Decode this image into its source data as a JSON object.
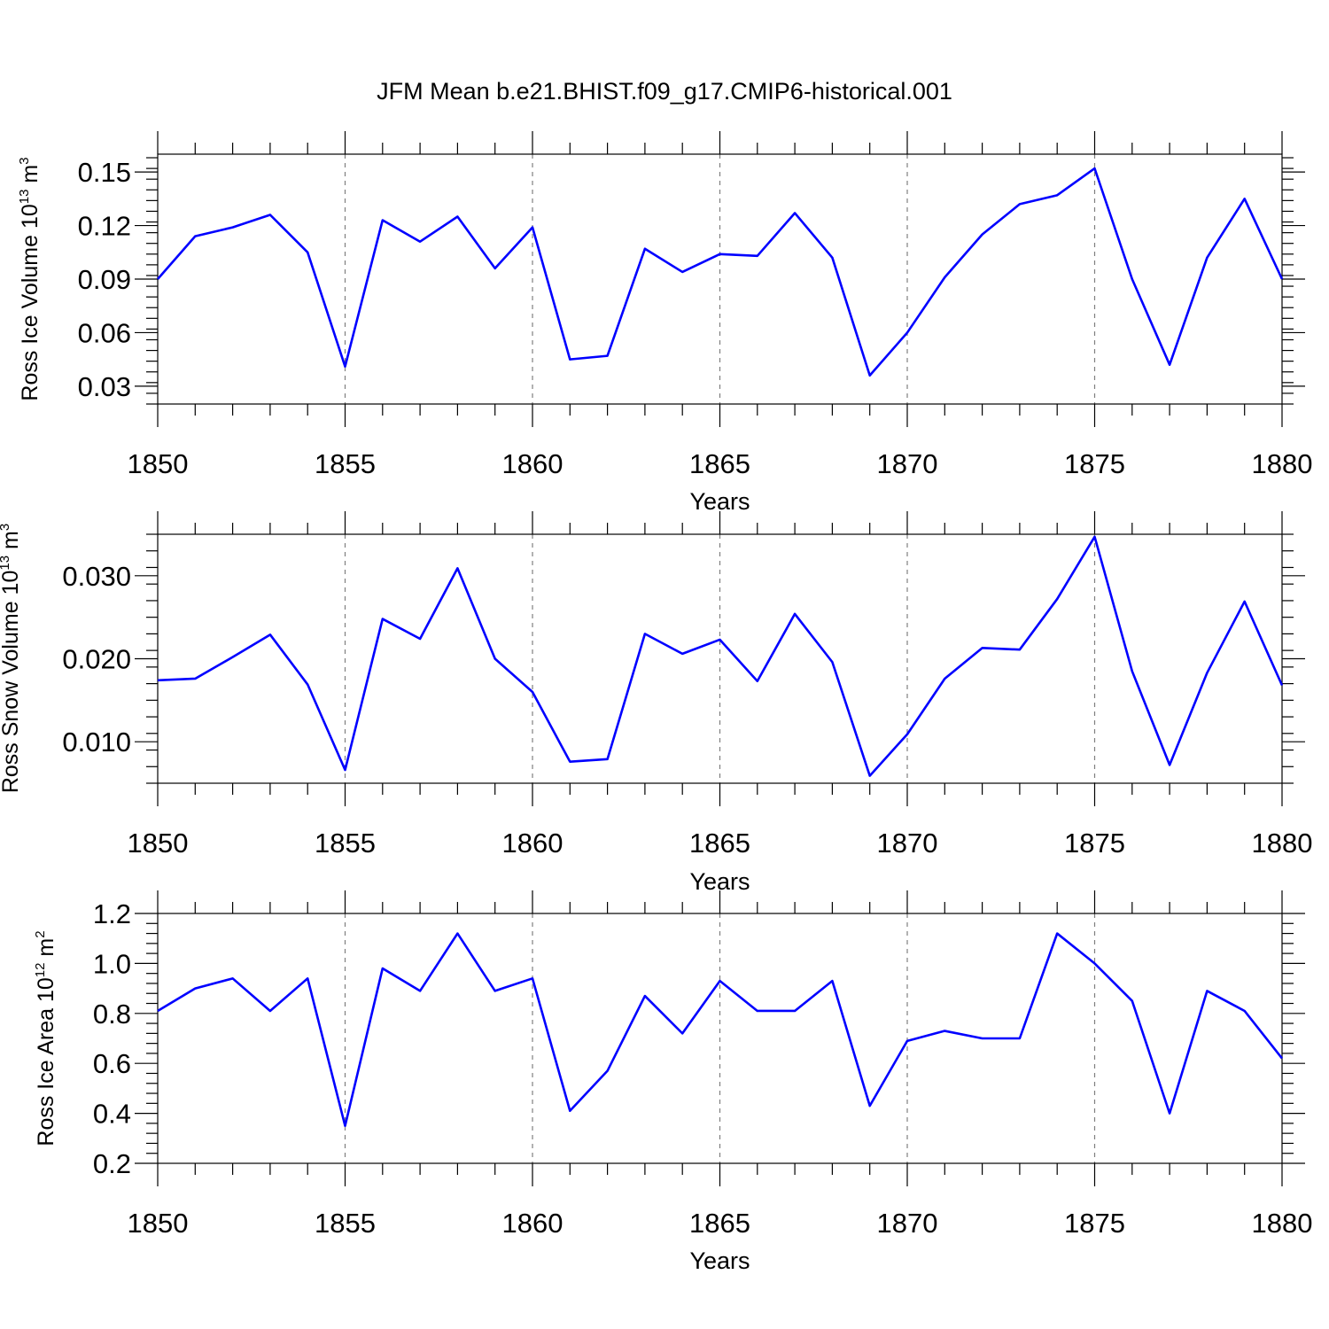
{
  "title": "JFM Mean b.e21.BHIST.f09_g17.CMIP6-historical.001",
  "colors": {
    "line": "#0000ff",
    "axis": "#000000",
    "grid": "#7f7f7f"
  },
  "chart_data": [
    {
      "type": "line",
      "xlabel": "Years",
      "ylabel": {
        "text": "Ross Ice Volume 10",
        "sup": "13",
        "unit": " m",
        "unit_sup": "3"
      },
      "xlim": [
        1850,
        1880
      ],
      "ylim": [
        0.02,
        0.16
      ],
      "xticks": [
        1850,
        1855,
        1860,
        1865,
        1870,
        1875,
        1880
      ],
      "yticks": [
        "0.03",
        "0.06",
        "0.09",
        "0.12",
        "0.15"
      ],
      "x": [
        1850,
        1851,
        1852,
        1853,
        1854,
        1855,
        1856,
        1857,
        1858,
        1859,
        1860,
        1861,
        1862,
        1863,
        1864,
        1865,
        1866,
        1867,
        1868,
        1869,
        1870,
        1871,
        1872,
        1873,
        1874,
        1875,
        1876,
        1877,
        1878,
        1879,
        1880
      ],
      "values": [
        0.09,
        0.114,
        0.119,
        0.126,
        0.105,
        0.041,
        0.123,
        0.111,
        0.125,
        0.096,
        0.119,
        0.045,
        0.047,
        0.107,
        0.094,
        0.104,
        0.103,
        0.127,
        0.102,
        0.036,
        0.06,
        0.091,
        0.115,
        0.132,
        0.137,
        0.152,
        0.09,
        0.042,
        0.102,
        0.135,
        0.09
      ]
    },
    {
      "type": "line",
      "xlabel": "Years",
      "ylabel": {
        "text": "Ross Snow Volume 10",
        "sup": "13",
        "unit": " m",
        "unit_sup": "3"
      },
      "xlim": [
        1850,
        1880
      ],
      "ylim": [
        0.005,
        0.035
      ],
      "xticks": [
        1850,
        1855,
        1860,
        1865,
        1870,
        1875,
        1880
      ],
      "yticks": [
        "0.010",
        "0.020",
        "0.030"
      ],
      "x": [
        1850,
        1851,
        1852,
        1853,
        1854,
        1855,
        1856,
        1857,
        1858,
        1859,
        1860,
        1861,
        1862,
        1863,
        1864,
        1865,
        1866,
        1867,
        1868,
        1869,
        1870,
        1871,
        1872,
        1873,
        1874,
        1875,
        1876,
        1877,
        1878,
        1879,
        1880
      ],
      "values": [
        0.0174,
        0.0176,
        0.0202,
        0.0229,
        0.0169,
        0.0066,
        0.0248,
        0.0224,
        0.0309,
        0.02,
        0.016,
        0.0076,
        0.0079,
        0.023,
        0.0206,
        0.0223,
        0.0173,
        0.0254,
        0.0196,
        0.0059,
        0.0109,
        0.0176,
        0.0213,
        0.0211,
        0.0272,
        0.0347,
        0.0185,
        0.0072,
        0.0183,
        0.0269,
        0.0168
      ]
    },
    {
      "type": "line",
      "xlabel": "Years",
      "ylabel": {
        "text": "Ross Ice Area 10",
        "sup": "12",
        "unit": " m",
        "unit_sup": "2"
      },
      "xlim": [
        1850,
        1880
      ],
      "ylim": [
        0.2,
        1.2
      ],
      "xticks": [
        1850,
        1855,
        1860,
        1865,
        1870,
        1875,
        1880
      ],
      "yticks": [
        "0.2",
        "0.4",
        "0.6",
        "0.8",
        "1.0",
        "1.2"
      ],
      "x": [
        1850,
        1851,
        1852,
        1853,
        1854,
        1855,
        1856,
        1857,
        1858,
        1859,
        1860,
        1861,
        1862,
        1863,
        1864,
        1865,
        1866,
        1867,
        1868,
        1869,
        1870,
        1871,
        1872,
        1873,
        1874,
        1875,
        1876,
        1877,
        1878,
        1879,
        1880
      ],
      "values": [
        0.81,
        0.9,
        0.94,
        0.81,
        0.94,
        0.35,
        0.98,
        0.89,
        1.12,
        0.89,
        0.94,
        0.41,
        0.57,
        0.87,
        0.72,
        0.93,
        0.81,
        0.81,
        0.93,
        0.43,
        0.69,
        0.73,
        0.7,
        0.7,
        1.12,
        1.0,
        0.85,
        0.4,
        0.89,
        0.81,
        0.62
      ]
    }
  ]
}
